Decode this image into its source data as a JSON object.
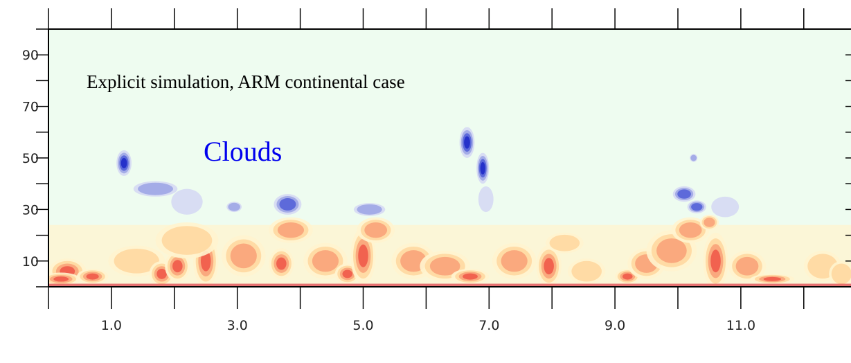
{
  "chart_data": {
    "type": "heatmap",
    "title": "",
    "xlabel": "",
    "ylabel": "",
    "xlim": [
      0.0,
      12.75
    ],
    "ylim": [
      0,
      100
    ],
    "x_tick_labels": [
      "1.0",
      "3.0",
      "5.0",
      "7.0",
      "9.0",
      "11.0"
    ],
    "x_tick_values": [
      1.0,
      3.0,
      5.0,
      7.0,
      9.0,
      11.0
    ],
    "x_minor_ticks": [
      0.0,
      2.0,
      4.0,
      6.0,
      8.0,
      10.0,
      12.0
    ],
    "y_tick_labels": [
      "10",
      "30",
      "50",
      "70",
      "90"
    ],
    "y_tick_values": [
      10,
      30,
      50,
      70,
      90
    ],
    "y_minor_ticks": [
      0,
      20,
      40,
      60,
      80,
      100
    ],
    "annotations": {
      "case": "Explicit simulation, ARM continental case",
      "clouds": "Clouds"
    },
    "colors": {
      "background": "#eefcf0",
      "warm_levels": [
        "#fff4cf",
        "#ffd8a0",
        "#f9a37a",
        "#ef5a4a",
        "#d81a2e"
      ],
      "cloud_levels": [
        "#d5d9f3",
        "#9ea6e6",
        "#5563d8",
        "#1f2bc8"
      ]
    },
    "cloud_features": [
      {
        "x": 1.2,
        "y": 48,
        "sx": 0.12,
        "sy": 5,
        "level": 0.9
      },
      {
        "x": 1.7,
        "y": 38,
        "sx": 0.35,
        "sy": 3,
        "level": 0.45
      },
      {
        "x": 2.2,
        "y": 33,
        "sx": 0.25,
        "sy": 5,
        "level": 0.35
      },
      {
        "x": 2.95,
        "y": 31,
        "sx": 0.12,
        "sy": 2,
        "level": 0.5
      },
      {
        "x": 3.8,
        "y": 32,
        "sx": 0.22,
        "sy": 4,
        "level": 0.85
      },
      {
        "x": 5.1,
        "y": 30,
        "sx": 0.25,
        "sy": 2.5,
        "level": 0.6
      },
      {
        "x": 6.65,
        "y": 56,
        "sx": 0.12,
        "sy": 6,
        "level": 1.0
      },
      {
        "x": 6.9,
        "y": 46,
        "sx": 0.1,
        "sy": 6,
        "level": 0.9
      },
      {
        "x": 6.95,
        "y": 34,
        "sx": 0.12,
        "sy": 5,
        "level": 0.3
      },
      {
        "x": 10.1,
        "y": 36,
        "sx": 0.18,
        "sy": 3,
        "level": 0.8
      },
      {
        "x": 10.3,
        "y": 31,
        "sx": 0.15,
        "sy": 2.5,
        "level": 0.85
      },
      {
        "x": 10.25,
        "y": 50,
        "sx": 0.06,
        "sy": 1.5,
        "level": 0.5
      },
      {
        "x": 10.75,
        "y": 31,
        "sx": 0.22,
        "sy": 4,
        "level": 0.35
      }
    ],
    "boundary_layer_features": [
      {
        "x": 0.3,
        "y": 6,
        "sx": 0.3,
        "sy": 5,
        "level": 0.7
      },
      {
        "x": 0.2,
        "y": 3,
        "sx": 0.3,
        "sy": 2.5,
        "level": 0.95
      },
      {
        "x": 0.7,
        "y": 4,
        "sx": 0.25,
        "sy": 3,
        "level": 0.85
      },
      {
        "x": 1.4,
        "y": 10,
        "sx": 0.45,
        "sy": 6,
        "level": 0.45
      },
      {
        "x": 1.8,
        "y": 5,
        "sx": 0.2,
        "sy": 5,
        "level": 0.8
      },
      {
        "x": 2.05,
        "y": 8,
        "sx": 0.2,
        "sy": 6,
        "level": 0.7
      },
      {
        "x": 2.5,
        "y": 10,
        "sx": 0.2,
        "sy": 10,
        "level": 0.95
      },
      {
        "x": 2.2,
        "y": 18,
        "sx": 0.5,
        "sy": 7,
        "level": 0.35
      },
      {
        "x": 3.1,
        "y": 12,
        "sx": 0.35,
        "sy": 8,
        "level": 0.55
      },
      {
        "x": 3.7,
        "y": 9,
        "sx": 0.2,
        "sy": 6,
        "level": 0.75
      },
      {
        "x": 3.85,
        "y": 22,
        "sx": 0.35,
        "sy": 5,
        "level": 0.5
      },
      {
        "x": 4.4,
        "y": 10,
        "sx": 0.35,
        "sy": 7,
        "level": 0.55
      },
      {
        "x": 4.75,
        "y": 5,
        "sx": 0.2,
        "sy": 4,
        "level": 0.75
      },
      {
        "x": 5.0,
        "y": 12,
        "sx": 0.2,
        "sy": 11,
        "level": 0.9
      },
      {
        "x": 5.2,
        "y": 22,
        "sx": 0.3,
        "sy": 5,
        "level": 0.55
      },
      {
        "x": 5.8,
        "y": 10,
        "sx": 0.35,
        "sy": 7,
        "level": 0.5
      },
      {
        "x": 6.3,
        "y": 8,
        "sx": 0.4,
        "sy": 6,
        "level": 0.55
      },
      {
        "x": 6.7,
        "y": 4,
        "sx": 0.3,
        "sy": 3,
        "level": 0.8
      },
      {
        "x": 7.4,
        "y": 10,
        "sx": 0.35,
        "sy": 7,
        "level": 0.55
      },
      {
        "x": 7.95,
        "y": 8,
        "sx": 0.2,
        "sy": 8,
        "level": 0.85
      },
      {
        "x": 8.2,
        "y": 17,
        "sx": 0.3,
        "sy": 4,
        "level": 0.4
      },
      {
        "x": 8.55,
        "y": 6,
        "sx": 0.3,
        "sy": 5,
        "level": 0.45
      },
      {
        "x": 9.2,
        "y": 4,
        "sx": 0.2,
        "sy": 3,
        "level": 0.85
      },
      {
        "x": 9.5,
        "y": 9,
        "sx": 0.3,
        "sy": 6,
        "level": 0.5
      },
      {
        "x": 9.9,
        "y": 14,
        "sx": 0.4,
        "sy": 8,
        "level": 0.55
      },
      {
        "x": 10.2,
        "y": 22,
        "sx": 0.3,
        "sy": 5,
        "level": 0.5
      },
      {
        "x": 10.6,
        "y": 10,
        "sx": 0.2,
        "sy": 11,
        "level": 0.9
      },
      {
        "x": 10.5,
        "y": 25,
        "sx": 0.15,
        "sy": 3,
        "level": 0.6
      },
      {
        "x": 11.1,
        "y": 8,
        "sx": 0.3,
        "sy": 6,
        "level": 0.6
      },
      {
        "x": 11.5,
        "y": 3,
        "sx": 0.35,
        "sy": 2,
        "level": 0.7
      },
      {
        "x": 12.3,
        "y": 8,
        "sx": 0.3,
        "sy": 6,
        "level": 0.35
      },
      {
        "x": 12.6,
        "y": 5,
        "sx": 0.2,
        "sy": 5,
        "level": 0.45
      }
    ]
  }
}
